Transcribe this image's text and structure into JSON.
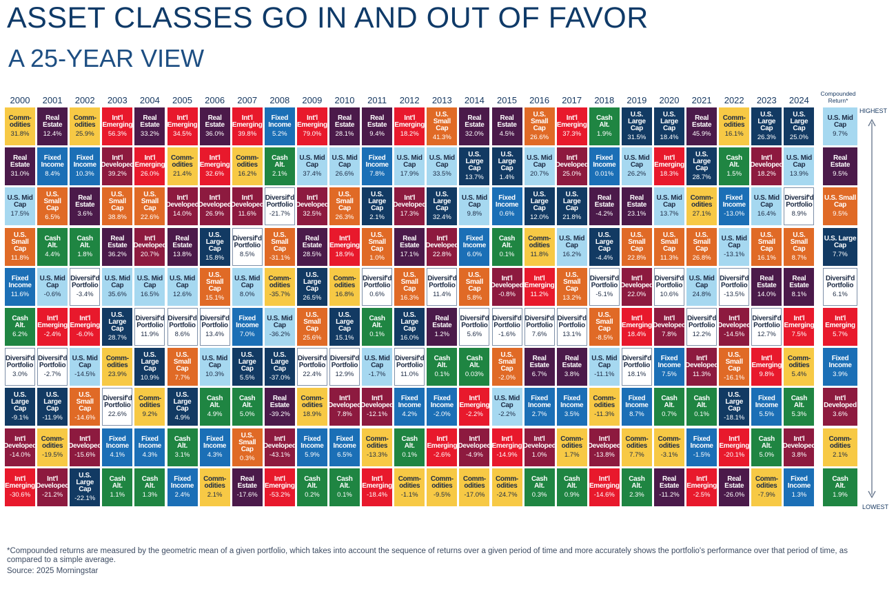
{
  "title": "ASSET CLASSES GO IN AND OUT OF FAVOR",
  "subtitle": "A 25-YEAR VIEW",
  "footnote": "*Compounded returns are measured by the geometric mean of a given portfolio, which takes into account the sequence of returns over a given period of time and more accurately shows the portfolio's performance over that period of time, as compared to a simple average.",
  "source": "Source: 2025 Morningstar",
  "compounded_label": "Compounded Return*",
  "highest_label": "HIGHEST",
  "lowest_label": "LOWEST",
  "colors": {
    "Commodities": "#f7c945",
    "Real Estate": "#4b1a4a",
    "Int'l Emerging": "#e8192c",
    "Int'l Developed": "#8d1a3f",
    "U.S. Small Cap": "#e06a26",
    "U.S. Mid Cap": "#a6d8f0",
    "U.S. Large Cap": "#123a63",
    "Fixed Income": "#1b6fb6",
    "Cash Alt.": "#1f8542",
    "Diversif'd Portfolio": "#ffffff"
  },
  "chart_data": {
    "type": "table",
    "title": "ASSET CLASSES GO IN AND OUT OF FAVOR",
    "subtitle": "A 25-YEAR VIEW",
    "years": [
      "2000",
      "2001",
      "2002",
      "2003",
      "2004",
      "2005",
      "2006",
      "2007",
      "2008",
      "2009",
      "2010",
      "2011",
      "2012",
      "2013",
      "2014",
      "2015",
      "2016",
      "2017",
      "2018",
      "2019",
      "2020",
      "2021",
      "2022",
      "2023",
      "2024"
    ],
    "columns": [
      [
        [
          "Commodities",
          "31.8%"
        ],
        [
          "Real Estate",
          "31.0%"
        ],
        [
          "U.S. Mid Cap",
          "17.5%"
        ],
        [
          "U.S. Small Cap",
          "11.8%"
        ],
        [
          "Fixed Income",
          "11.6%"
        ],
        [
          "Cash Alt.",
          "6.2%"
        ],
        [
          "Diversif'd Portfolio",
          "3.0%"
        ],
        [
          "U.S. Large Cap",
          "-9.1%"
        ],
        [
          "Int'l Developed",
          "-14.0%"
        ],
        [
          "Int'l Emerging",
          "-30.6%"
        ]
      ],
      [
        [
          "Real Estate",
          "12.4%"
        ],
        [
          "Fixed Income",
          "8.4%"
        ],
        [
          "U.S. Small Cap",
          "6.5%"
        ],
        [
          "Cash Alt.",
          "4.4%"
        ],
        [
          "U.S. Mid Cap",
          "-0.6%"
        ],
        [
          "Int'l Emerging",
          "-2.4%"
        ],
        [
          "Diversif'd Portfolio",
          "-2.7%"
        ],
        [
          "U.S. Large Cap",
          "-11.9%"
        ],
        [
          "Commodities",
          "-19.5%"
        ],
        [
          "Int'l Developed",
          "-21.2%"
        ]
      ],
      [
        [
          "Commodities",
          "25.9%"
        ],
        [
          "Fixed Income",
          "10.3%"
        ],
        [
          "Real Estate",
          "3.6%"
        ],
        [
          "Cash Alt.",
          "1.8%"
        ],
        [
          "Diversif'd Portfolio",
          "-3.4%"
        ],
        [
          "Int'l Emerging",
          "-6.0%"
        ],
        [
          "U.S. Mid Cap",
          "-14.5%"
        ],
        [
          "U.S. Small Cap",
          "-14.6%"
        ],
        [
          "Int'l Developed",
          "-15.6%"
        ],
        [
          "U.S. Large Cap",
          "-22.1%"
        ]
      ],
      [
        [
          "Int'l Emerging",
          "56.3%"
        ],
        [
          "Int'l Developed",
          "39.2%"
        ],
        [
          "U.S. Small Cap",
          "38.8%"
        ],
        [
          "Real Estate",
          "36.2%"
        ],
        [
          "U.S. Mid Cap",
          "35.6%"
        ],
        [
          "U.S. Large Cap",
          "28.7%"
        ],
        [
          "Commodities",
          "23.9%"
        ],
        [
          "Diversif'd Portfolio",
          "22.6%"
        ],
        [
          "Fixed Income",
          "4.1%"
        ],
        [
          "Cash Alt.",
          "1.1%"
        ]
      ],
      [
        [
          "Real Estate",
          "33.2%"
        ],
        [
          "Int'l Emerging",
          "26.0%"
        ],
        [
          "U.S. Small Cap",
          "22.6%"
        ],
        [
          "Int'l Developed",
          "20.7%"
        ],
        [
          "U.S. Mid Cap",
          "16.5%"
        ],
        [
          "Diversif'd Portfolio",
          "11.9%"
        ],
        [
          "U.S. Large Cap",
          "10.9%"
        ],
        [
          "Commodities",
          "9.2%"
        ],
        [
          "Fixed Income",
          "4.3%"
        ],
        [
          "Cash Alt.",
          "1.3%"
        ]
      ],
      [
        [
          "Int'l Emerging",
          "34.5%"
        ],
        [
          "Commodities",
          "21.4%"
        ],
        [
          "Int'l Developed",
          "14.0%"
        ],
        [
          "Real Estate",
          "13.8%"
        ],
        [
          "U.S. Mid Cap",
          "12.6%"
        ],
        [
          "Diversif'd Portfolio",
          "8.6%"
        ],
        [
          "U.S. Small Cap",
          "7.7%"
        ],
        [
          "U.S. Large Cap",
          "4.9%"
        ],
        [
          "Cash Alt.",
          "3.1%"
        ],
        [
          "Fixed Income",
          "2.4%"
        ]
      ],
      [
        [
          "Real Estate",
          "36.0%"
        ],
        [
          "Int'l Emerging",
          "32.6%"
        ],
        [
          "Int'l Developed",
          "26.9%"
        ],
        [
          "U.S. Large Cap",
          "15.8%"
        ],
        [
          "U.S. Small Cap",
          "15.1%"
        ],
        [
          "Diversif'd Portfolio",
          "13.4%"
        ],
        [
          "U.S. Mid Cap",
          "10.3%"
        ],
        [
          "Cash Alt.",
          "4.9%"
        ],
        [
          "Fixed Income",
          "4.3%"
        ],
        [
          "Commodities",
          "2.1%"
        ]
      ],
      [
        [
          "Int'l Emerging",
          "39.8%"
        ],
        [
          "Commodities",
          "16.2%"
        ],
        [
          "Int'l Developed",
          "11.6%"
        ],
        [
          "Diversif'd Portfolio",
          "8.5%"
        ],
        [
          "U.S. Mid Cap",
          "8.0%"
        ],
        [
          "Fixed Income",
          "7.0%"
        ],
        [
          "U.S. Large Cap",
          "5.5%"
        ],
        [
          "Cash Alt.",
          "5.0%"
        ],
        [
          "U.S. Small Cap",
          "0.3%"
        ],
        [
          "Real Estate",
          "-17.6%"
        ]
      ],
      [
        [
          "Fixed Income",
          "5.2%"
        ],
        [
          "Cash Alt.",
          "2.1%"
        ],
        [
          "Diversif'd Portfolio",
          "-21.7%"
        ],
        [
          "U.S. Small Cap",
          "-31.1%"
        ],
        [
          "Commodities",
          "-35.7%"
        ],
        [
          "U.S. Mid Cap",
          "-36.2%"
        ],
        [
          "U.S. Large Cap",
          "-37.0%"
        ],
        [
          "Real Estate",
          "-39.2%"
        ],
        [
          "Int'l Developed",
          "-43.1%"
        ],
        [
          "Int'l Emerging",
          "-53.2%"
        ]
      ],
      [
        [
          "Int'l Emerging",
          "79.0%"
        ],
        [
          "U.S. Mid Cap",
          "37.4%"
        ],
        [
          "Int'l Developed",
          "32.5%"
        ],
        [
          "Real Estate",
          "28.5%"
        ],
        [
          "U.S. Large Cap",
          "26.5%"
        ],
        [
          "U.S. Small Cap",
          "25.6%"
        ],
        [
          "Diversif'd Portfolio",
          "22.4%"
        ],
        [
          "Commodities",
          "18.9%"
        ],
        [
          "Fixed Income",
          "5.9%"
        ],
        [
          "Cash Alt.",
          "0.2%"
        ]
      ],
      [
        [
          "Real Estate",
          "28.1%"
        ],
        [
          "U.S. Mid Cap",
          "26.6%"
        ],
        [
          "U.S. Small Cap",
          "26.3%"
        ],
        [
          "Int'l Emerging",
          "18.9%"
        ],
        [
          "Commodities",
          "16.8%"
        ],
        [
          "U.S. Large Cap",
          "15.1%"
        ],
        [
          "Diversif'd Portfolio",
          "12.9%"
        ],
        [
          "Int'l Developed",
          "7.8%"
        ],
        [
          "Fixed Income",
          "6.5%"
        ],
        [
          "Cash Alt.",
          "0.1%"
        ]
      ],
      [
        [
          "Real Estate",
          "9.4%"
        ],
        [
          "Fixed Income",
          "7.8%"
        ],
        [
          "U.S. Large Cap",
          "2.1%"
        ],
        [
          "U.S. Small Cap",
          "1.0%"
        ],
        [
          "Diversif'd Portfolio",
          "0.6%"
        ],
        [
          "Cash Alt.",
          "0.1%"
        ],
        [
          "U.S. Mid Cap",
          "-1.7%"
        ],
        [
          "Int'l Developed",
          "-12.1%"
        ],
        [
          "Commodities",
          "-13.3%"
        ],
        [
          "Int'l Emerging",
          "-18.4%"
        ]
      ],
      [
        [
          "Int'l Emerging",
          "18.2%"
        ],
        [
          "U.S. Mid Cap",
          "17.9%"
        ],
        [
          "Int'l Developed",
          "17.3%"
        ],
        [
          "Real Estate",
          "17.1%"
        ],
        [
          "U.S. Small Cap",
          "16.3%"
        ],
        [
          "U.S. Large Cap",
          "16.0%"
        ],
        [
          "Diversif'd Portfolio",
          "11.0%"
        ],
        [
          "Fixed Income",
          "4.2%"
        ],
        [
          "Cash Alt.",
          "0.1%"
        ],
        [
          "Commodities",
          "-1.1%"
        ]
      ],
      [
        [
          "U.S. Small Cap",
          "41.3%"
        ],
        [
          "U.S. Mid Cap",
          "33.5%"
        ],
        [
          "U.S. Large Cap",
          "32.4%"
        ],
        [
          "Int'l Developed",
          "22.8%"
        ],
        [
          "Diversif'd Portfolio",
          "11.4%"
        ],
        [
          "Real Estate",
          "1.2%"
        ],
        [
          "Cash Alt.",
          "0.1%"
        ],
        [
          "Fixed Income",
          "-2.0%"
        ],
        [
          "Int'l Emerging",
          "-2.6%"
        ],
        [
          "Commodities",
          "-9.5%"
        ]
      ],
      [
        [
          "Real Estate",
          "32.0%"
        ],
        [
          "U.S. Large Cap",
          "13.7%"
        ],
        [
          "U.S. Mid Cap",
          "9.8%"
        ],
        [
          "Fixed Income",
          "6.0%"
        ],
        [
          "U.S. Small Cap",
          "5.8%"
        ],
        [
          "Diversif'd Portfolio",
          "5.6%"
        ],
        [
          "Cash Alt.",
          "0.03%"
        ],
        [
          "Int'l Emerging",
          "-2.2%"
        ],
        [
          "Int'l Developed",
          "-4.9%"
        ],
        [
          "Commodities",
          "-17.0%"
        ]
      ],
      [
        [
          "Real Estate",
          "4.5%"
        ],
        [
          "U.S. Large Cap",
          "1.4%"
        ],
        [
          "Fixed Income",
          "0.6%"
        ],
        [
          "Cash Alt.",
          "0.1%"
        ],
        [
          "Int'l Developed",
          "-0.8%"
        ],
        [
          "Diversif'd Portfolio",
          "-1.6%"
        ],
        [
          "U.S. Small Cap",
          "-2.0%"
        ],
        [
          "U.S. Mid Cap",
          "-2.2%"
        ],
        [
          "Int'l Emerging",
          "-14.9%"
        ],
        [
          "Commodities",
          "-24.7%"
        ]
      ],
      [
        [
          "U.S. Small Cap",
          "26.6%"
        ],
        [
          "U.S. Mid Cap",
          "20.7%"
        ],
        [
          "U.S. Large Cap",
          "12.0%"
        ],
        [
          "Commodities",
          "11.8%"
        ],
        [
          "Int'l Emerging",
          "11.2%"
        ],
        [
          "Diversif'd Portfolio",
          "7.6%"
        ],
        [
          "Real Estate",
          "6.7%"
        ],
        [
          "Fixed Income",
          "2.7%"
        ],
        [
          "Int'l Developed",
          "1.0%"
        ],
        [
          "Cash Alt.",
          "0.3%"
        ]
      ],
      [
        [
          "Int'l Emerging",
          "37.3%"
        ],
        [
          "Int'l Developed",
          "25.0%"
        ],
        [
          "U.S. Large Cap",
          "21.8%"
        ],
        [
          "U.S. Mid Cap",
          "16.2%"
        ],
        [
          "U.S. Small Cap",
          "13.2%"
        ],
        [
          "Diversif'd Portfolio",
          "13.1%"
        ],
        [
          "Real Estate",
          "3.8%"
        ],
        [
          "Fixed Income",
          "3.5%"
        ],
        [
          "Commodities",
          "1.7%"
        ],
        [
          "Cash Alt.",
          "0.9%"
        ]
      ],
      [
        [
          "Cash Alt.",
          "1.9%"
        ],
        [
          "Fixed Income",
          "0.01%"
        ],
        [
          "Real Estate",
          "-4.2%"
        ],
        [
          "U.S. Large Cap",
          "-4.4%"
        ],
        [
          "Diversif'd Portfolio",
          "-5.1%"
        ],
        [
          "U.S. Small Cap",
          "-8.5%"
        ],
        [
          "U.S. Mid Cap",
          "-11.1%"
        ],
        [
          "Commodities",
          "-11.3%"
        ],
        [
          "Int'l Developed",
          "-13.8%"
        ],
        [
          "Int'l Emerging",
          "-14.6%"
        ]
      ],
      [
        [
          "U.S. Large Cap",
          "31.5%"
        ],
        [
          "U.S. Mid Cap",
          "26.2%"
        ],
        [
          "Real Estate",
          "23.1%"
        ],
        [
          "U.S. Small Cap",
          "22.8%"
        ],
        [
          "Int'l Developed",
          "22.0%"
        ],
        [
          "Int'l Emerging",
          "18.4%"
        ],
        [
          "Diversif'd Portfolio",
          "18.1%"
        ],
        [
          "Fixed Income",
          "8.7%"
        ],
        [
          "Commodities",
          "7.7%"
        ],
        [
          "Cash Alt.",
          "2.3%"
        ]
      ],
      [
        [
          "U.S. Large Cap",
          "18.4%"
        ],
        [
          "Int'l Emerging",
          "18.3%"
        ],
        [
          "U.S. Mid Cap",
          "13.7%"
        ],
        [
          "U.S. Small Cap",
          "11.3%"
        ],
        [
          "Diversif'd Portfolio",
          "10.6%"
        ],
        [
          "Int'l Developed",
          "7.8%"
        ],
        [
          "Fixed Income",
          "7.5%"
        ],
        [
          "Cash Alt.",
          "0.7%"
        ],
        [
          "Commodities",
          "-3.1%"
        ],
        [
          "Real Estate",
          "-11.2%"
        ]
      ],
      [
        [
          "Real Estate",
          "45.9%"
        ],
        [
          "U.S. Large Cap",
          "28.7%"
        ],
        [
          "Commodities",
          "27.1%"
        ],
        [
          "U.S. Small Cap",
          "26.8%"
        ],
        [
          "U.S. Mid Cap",
          "24.8%"
        ],
        [
          "Diversif'd Portfolio",
          "12.2%"
        ],
        [
          "Int'l Developed",
          "11.3%"
        ],
        [
          "Cash Alt.",
          "0.1%"
        ],
        [
          "Fixed Income",
          "-1.5%"
        ],
        [
          "Int'l Emerging",
          "-2.5%"
        ]
      ],
      [
        [
          "Commodities",
          "16.1%"
        ],
        [
          "Cash Alt.",
          "1.5%"
        ],
        [
          "Fixed Income",
          "-13.0%"
        ],
        [
          "U.S. Mid Cap",
          "-13.1%"
        ],
        [
          "Diversif'd Portfolio",
          "-13.5%"
        ],
        [
          "Int'l Developed",
          "-14.5%"
        ],
        [
          "U.S. Small Cap",
          "-16.1%"
        ],
        [
          "U.S. Large Cap",
          "-18.1%"
        ],
        [
          "Int'l Emerging",
          "-20.1%"
        ],
        [
          "Real Estate",
          "-26.0%"
        ]
      ],
      [
        [
          "U.S. Large Cap",
          "26.3%"
        ],
        [
          "Int'l Developed",
          "18.2%"
        ],
        [
          "U.S. Mid Cap",
          "16.4%"
        ],
        [
          "U.S. Small Cap",
          "16.1%"
        ],
        [
          "Real Estate",
          "14.0%"
        ],
        [
          "Diversif'd Portfolio",
          "12.7%"
        ],
        [
          "Int'l Emerging",
          "9.8%"
        ],
        [
          "Fixed Income",
          "5.5%"
        ],
        [
          "Cash Alt.",
          "5.0%"
        ],
        [
          "Commodities",
          "-7.9%"
        ]
      ],
      [
        [
          "U.S. Large Cap",
          "25.0%"
        ],
        [
          "U.S. Mid Cap",
          "13.9%"
        ],
        [
          "Diversif'd Portfolio",
          "8.9%"
        ],
        [
          "U.S. Small Cap",
          "8.7%"
        ],
        [
          "Real Estate",
          "8.1%"
        ],
        [
          "Int'l Emerging",
          "7.5%"
        ],
        [
          "Commodities",
          "5.4%"
        ],
        [
          "Cash Alt.",
          "5.3%"
        ],
        [
          "Int'l Developed",
          "3.8%"
        ],
        [
          "Fixed Income",
          "1.3%"
        ]
      ]
    ],
    "compounded": [
      [
        "U.S. Mid Cap",
        "9.7%"
      ],
      [
        "Real Estate",
        "9.5%"
      ],
      [
        "U.S. Small Cap",
        "9.5%"
      ],
      [
        "U.S. Large Cap",
        "7.7%"
      ],
      [
        "Diversif'd Portfolio",
        "6.1%"
      ],
      [
        "Int'l Emerging",
        "5.7%"
      ],
      [
        "Fixed Income",
        "3.9%"
      ],
      [
        "Int'l Developed",
        "3.6%"
      ],
      [
        "Commodities",
        "2.1%"
      ],
      [
        "Cash Alt.",
        "1.9%"
      ]
    ]
  }
}
